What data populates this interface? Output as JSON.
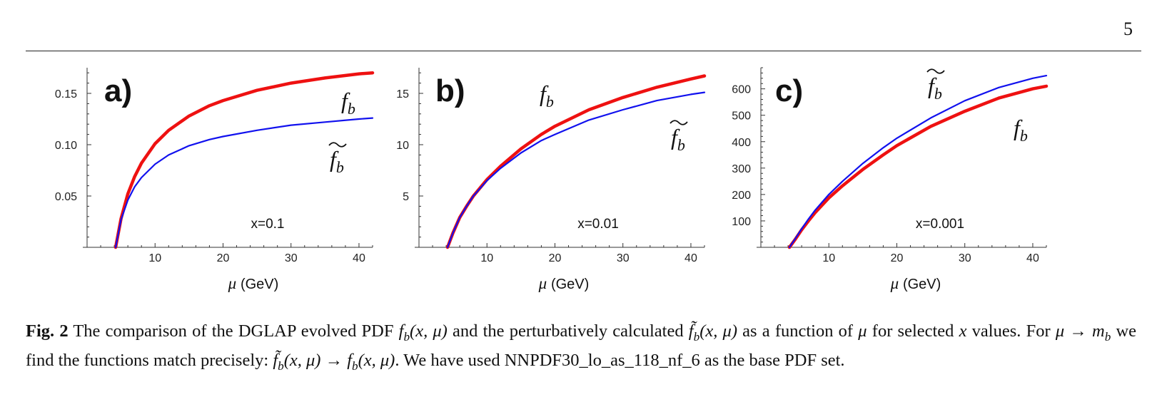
{
  "page": {
    "number": "5"
  },
  "chart_data": [
    {
      "panel_label": "a)",
      "type": "line",
      "annotation": "x=0.1",
      "xlabel": "(GeV)",
      "xlabel_symbol": "μ",
      "xlim": [
        0,
        42
      ],
      "ylim": [
        0,
        0.175
      ],
      "xticks": [
        10,
        20,
        30,
        40
      ],
      "yticks": [
        0.05,
        0.1,
        0.15
      ],
      "ytick_labels": [
        "0.05",
        "0.10",
        "0.15"
      ],
      "series": [
        {
          "name": "f_b",
          "display": "f",
          "sub": "b",
          "tilde": false,
          "color": "#ee1111",
          "x": [
            4.2,
            5,
            6,
            7,
            8,
            10,
            12,
            15,
            18,
            20,
            25,
            30,
            35,
            40,
            42
          ],
          "y": [
            0.0,
            0.028,
            0.052,
            0.069,
            0.082,
            0.101,
            0.114,
            0.128,
            0.138,
            0.143,
            0.153,
            0.16,
            0.165,
            0.169,
            0.17
          ]
        },
        {
          "name": "f̃_b",
          "display": "f",
          "sub": "b",
          "tilde": true,
          "color": "#1111ee",
          "x": [
            4.2,
            5,
            6,
            7,
            8,
            10,
            12,
            15,
            18,
            20,
            25,
            30,
            35,
            40,
            42
          ],
          "y": [
            0.0,
            0.027,
            0.046,
            0.059,
            0.068,
            0.081,
            0.09,
            0.099,
            0.105,
            0.108,
            0.114,
            0.119,
            0.122,
            0.125,
            0.126
          ]
        }
      ]
    },
    {
      "panel_label": "b)",
      "type": "line",
      "annotation": "x=0.01",
      "xlabel": "(GeV)",
      "xlabel_symbol": "μ",
      "xlim": [
        0,
        42
      ],
      "ylim": [
        0,
        17.5
      ],
      "xticks": [
        10,
        20,
        30,
        40
      ],
      "yticks": [
        5,
        10,
        15
      ],
      "ytick_labels": [
        "5",
        "10",
        "15"
      ],
      "series": [
        {
          "name": "f_b",
          "display": "f",
          "sub": "b",
          "tilde": false,
          "color": "#ee1111",
          "x": [
            4.2,
            5,
            6,
            7,
            8,
            10,
            12,
            15,
            18,
            20,
            25,
            30,
            35,
            40,
            42
          ],
          "y": [
            0.0,
            1.4,
            2.9,
            4.0,
            5.0,
            6.6,
            7.9,
            9.6,
            11.0,
            11.8,
            13.4,
            14.6,
            15.6,
            16.4,
            16.7
          ]
        },
        {
          "name": "f̃_b",
          "display": "f",
          "sub": "b",
          "tilde": true,
          "color": "#1111ee",
          "x": [
            4.2,
            5,
            6,
            7,
            8,
            10,
            12,
            15,
            18,
            20,
            25,
            30,
            35,
            40,
            42
          ],
          "y": [
            0.0,
            1.4,
            2.9,
            4.0,
            5.0,
            6.5,
            7.7,
            9.2,
            10.4,
            11.0,
            12.4,
            13.4,
            14.3,
            14.9,
            15.1
          ]
        }
      ]
    },
    {
      "panel_label": "c)",
      "type": "line",
      "annotation": "x=0.001",
      "xlabel": "(GeV)",
      "xlabel_symbol": "μ",
      "xlim": [
        0,
        42
      ],
      "ylim": [
        0,
        680
      ],
      "xticks": [
        10,
        20,
        30,
        40
      ],
      "yticks": [
        100,
        200,
        300,
        400,
        500,
        600
      ],
      "ytick_labels": [
        "100",
        "200",
        "300",
        "400",
        "500",
        "600"
      ],
      "series": [
        {
          "name": "f_b",
          "display": "f",
          "sub": "b",
          "tilde": false,
          "color": "#ee1111",
          "x": [
            4.2,
            5,
            6,
            7,
            8,
            10,
            12,
            15,
            18,
            20,
            25,
            30,
            35,
            40,
            42
          ],
          "y": [
            0,
            28,
            66,
            100,
            132,
            187,
            233,
            295,
            350,
            385,
            458,
            515,
            565,
            600,
            610
          ]
        },
        {
          "name": "f̃_b",
          "display": "f",
          "sub": "b",
          "tilde": true,
          "color": "#1111ee",
          "x": [
            4.2,
            5,
            6,
            7,
            8,
            10,
            12,
            15,
            18,
            20,
            25,
            30,
            35,
            40,
            42
          ],
          "y": [
            0,
            30,
            70,
            107,
            141,
            200,
            250,
            318,
            377,
            413,
            490,
            555,
            605,
            640,
            650
          ]
        }
      ]
    }
  ],
  "caption": {
    "label": "Fig. 2",
    "parts": [
      {
        "t": "text",
        "v": " The comparison of the DGLAP evolved PDF "
      },
      {
        "t": "math",
        "v": "f",
        "sub": "b",
        "args": "(x, μ)"
      },
      {
        "t": "text",
        "v": " and the perturbatively calculated "
      },
      {
        "t": "math",
        "v": "f̃",
        "sub": "b",
        "args": "(x, μ)"
      },
      {
        "t": "text",
        "v": " as a function of "
      },
      {
        "t": "math",
        "v": "μ"
      },
      {
        "t": "text",
        "v": " for selected "
      },
      {
        "t": "math",
        "v": "x"
      },
      {
        "t": "text",
        "v": " values. For "
      },
      {
        "t": "math",
        "v": "μ → m",
        "sub": "b"
      },
      {
        "t": "text",
        "v": " we find the functions match precisely: "
      },
      {
        "t": "math",
        "v": "f̃",
        "sub": "b",
        "args": "(x, μ) → "
      },
      {
        "t": "math",
        "v": "f",
        "sub": "b",
        "args": "(x, μ)"
      },
      {
        "t": "text",
        "v": ". We have used NNPDF30_lo_as_118_nf_6 as the base PDF set."
      }
    ]
  }
}
